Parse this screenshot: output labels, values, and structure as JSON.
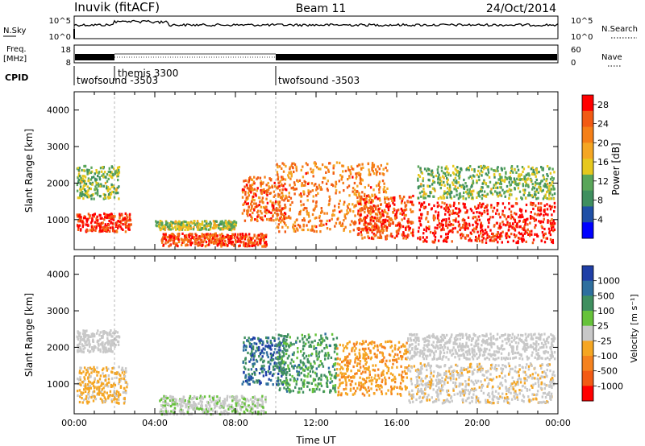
{
  "header": {
    "title_left": "Inuvik  (fitACF)",
    "title_center": "Beam 11",
    "title_right": "24/Oct/2014"
  },
  "colors": {
    "background": "#ffffff",
    "axes": "#000000",
    "power_scale": [
      "#0000ff",
      "#1f4fa6",
      "#3f8f5f",
      "#5aa65a",
      "#e6c81e",
      "#f5a623",
      "#f57f17",
      "#f25a14",
      "#ff0000"
    ],
    "velocity_scale": [
      "#1f3fa6",
      "#2e6f9e",
      "#3f8f5f",
      "#66c23a",
      "#c8c8c8",
      "#f5a623",
      "#f5821f",
      "#f25a14",
      "#ff0000"
    ]
  },
  "labels": {
    "nsky": "N.Sky",
    "nsky_ticks": [
      "10^5",
      "10^0"
    ],
    "nsearch": "N.Search",
    "nsearch_ticks": [
      "10^5",
      "10^0"
    ],
    "freq": "Freq.",
    "freq_unit": "[MHz]",
    "freq_ticks": [
      "18",
      "8"
    ],
    "nave": "Nave",
    "nave_ticks": [
      "60",
      "0"
    ],
    "cpid": "CPID",
    "cpid_segments": [
      "twofsound -3503",
      "themis 3300",
      "twofsound -3503"
    ]
  },
  "chart_data": [
    {
      "type": "heatmap",
      "title": "",
      "xlabel": "",
      "ylabel": "Slant Range [km]",
      "xlim": [
        0,
        24
      ],
      "ylim": [
        180,
        4500
      ],
      "y_ticks": [
        "1000",
        "2000",
        "3000",
        "4000"
      ],
      "colorbar": {
        "label": "Power [dB]",
        "ticks": [
          "4",
          "8",
          "12",
          "16",
          "20",
          "24",
          "28"
        ],
        "range": [
          0,
          30
        ]
      },
      "echo_regions": [
        {
          "t": [
            0.1,
            2.8
          ],
          "range": [
            700,
            1200
          ],
          "value": 27
        },
        {
          "t": [
            0.1,
            2.2
          ],
          "range": [
            1600,
            2500
          ],
          "value": 12
        },
        {
          "t": [
            4.3,
            9.5
          ],
          "range": [
            300,
            650
          ],
          "value": 25
        },
        {
          "t": [
            4.0,
            8.0
          ],
          "range": [
            750,
            1000
          ],
          "value": 14
        },
        {
          "t": [
            8.3,
            10.5
          ],
          "range": [
            1000,
            2200
          ],
          "value": 24
        },
        {
          "t": [
            10.0,
            15.5
          ],
          "range": [
            700,
            2600
          ],
          "value": 22
        },
        {
          "t": [
            14.0,
            16.8
          ],
          "range": [
            500,
            1700
          ],
          "value": 26
        },
        {
          "t": [
            17.0,
            23.8
          ],
          "range": [
            400,
            1500
          ],
          "value": 28
        },
        {
          "t": [
            17.0,
            23.8
          ],
          "range": [
            1600,
            2500
          ],
          "value": 12
        }
      ]
    },
    {
      "type": "heatmap",
      "title": "",
      "xlabel": "Time UT",
      "ylabel": "Slant Range [km]",
      "xlim": [
        0,
        24
      ],
      "ylim": [
        180,
        4500
      ],
      "x_ticks": [
        "00:00",
        "04:00",
        "08:00",
        "12:00",
        "16:00",
        "20:00",
        "00:00"
      ],
      "y_ticks": [
        "1000",
        "2000",
        "3000",
        "4000"
      ],
      "colorbar": {
        "label": "Velocity [m s⁻¹]",
        "ticks": [
          "1000",
          "500",
          "100",
          "25",
          "-25",
          "-100",
          "-500",
          "-1000"
        ],
        "range": [
          -1000,
          1000
        ]
      },
      "echo_regions": [
        {
          "t": [
            0.1,
            2.6
          ],
          "range": [
            500,
            1500
          ],
          "value": -150
        },
        {
          "t": [
            0.1,
            2.2
          ],
          "range": [
            1900,
            2500
          ],
          "value": 0
        },
        {
          "t": [
            4.2,
            9.5
          ],
          "range": [
            200,
            700
          ],
          "value": 80
        },
        {
          "t": [
            8.3,
            10.5
          ],
          "range": [
            1000,
            2300
          ],
          "value": 700
        },
        {
          "t": [
            10.0,
            13.0
          ],
          "range": [
            800,
            2400
          ],
          "value": 400
        },
        {
          "t": [
            13.0,
            16.5
          ],
          "range": [
            700,
            2200
          ],
          "value": -300
        },
        {
          "t": [
            16.5,
            23.8
          ],
          "range": [
            500,
            1600
          ],
          "value": -80
        },
        {
          "t": [
            16.5,
            23.8
          ],
          "range": [
            1700,
            2400
          ],
          "value": 0
        }
      ]
    }
  ]
}
